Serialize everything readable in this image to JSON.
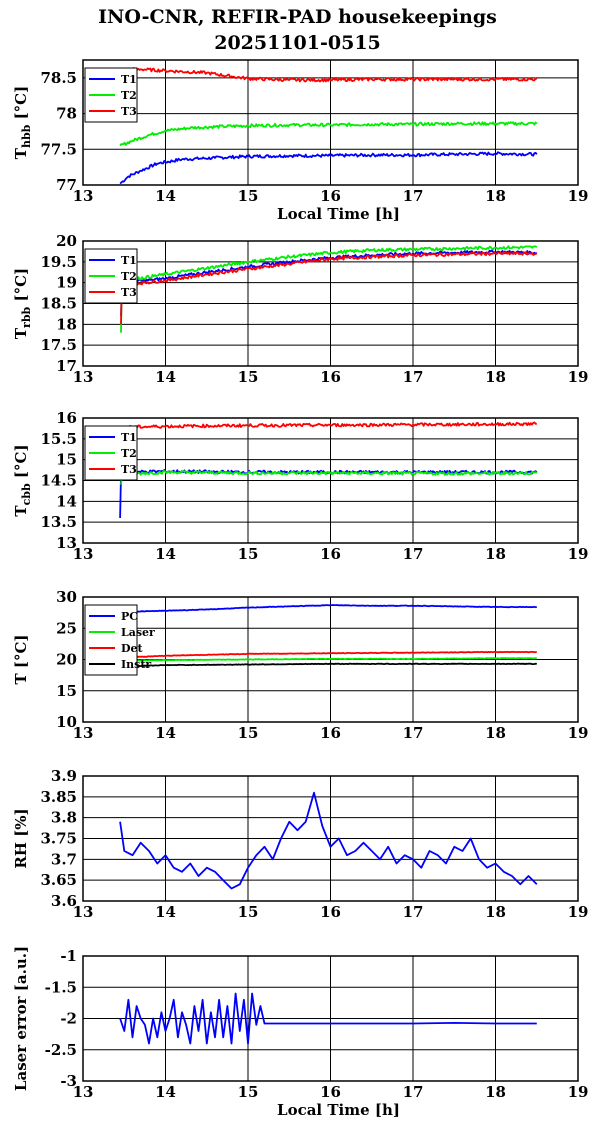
{
  "title": "INO-CNR, REFIR-PAD housekeepings",
  "subtitle": "20251101-0515",
  "colors": {
    "blue": "#0000ff",
    "green": "#00ee00",
    "red": "#ff0000",
    "black": "#000000"
  },
  "chart_data": [
    {
      "type": "line",
      "ylabel": "T_hbb [°C]",
      "xlabel": "Local Time [h]",
      "xlim": [
        13,
        19
      ],
      "ylim": [
        77,
        78.75
      ],
      "yticks": [
        77,
        77.5,
        78,
        78.5
      ],
      "ytick_labels": [
        "77",
        "77.5",
        "78",
        "78.5"
      ],
      "xticks": [
        13,
        14,
        15,
        16,
        17,
        18,
        19
      ],
      "legend": "top-left",
      "series": [
        {
          "name": "T1",
          "color": "#0000ff",
          "x": [
            13.45,
            13.55,
            13.7,
            13.9,
            14.2,
            14.6,
            15.0,
            15.5,
            16.0,
            16.5,
            17.0,
            17.5,
            18.0,
            18.5
          ],
          "y": [
            77.02,
            77.12,
            77.2,
            77.3,
            77.36,
            77.38,
            77.4,
            77.41,
            77.41,
            77.42,
            77.42,
            77.43,
            77.44,
            77.43
          ]
        },
        {
          "name": "T2",
          "color": "#00ee00",
          "x": [
            13.45,
            13.6,
            13.8,
            14.0,
            14.3,
            14.7,
            15.0,
            15.5,
            16.0,
            16.5,
            17.0,
            17.5,
            18.0,
            18.5
          ],
          "y": [
            77.55,
            77.62,
            77.7,
            77.76,
            77.8,
            77.82,
            77.83,
            77.84,
            77.84,
            77.85,
            77.85,
            77.86,
            77.86,
            77.86
          ]
        },
        {
          "name": "T3",
          "color": "#ff0000",
          "x": [
            13.45,
            13.7,
            14.0,
            14.5,
            14.8,
            15.0,
            15.5,
            16.0,
            16.5,
            17.0,
            17.5,
            18.0,
            18.5
          ],
          "y": [
            78.62,
            78.62,
            78.6,
            78.57,
            78.52,
            78.49,
            78.47,
            78.47,
            78.48,
            78.48,
            78.48,
            78.48,
            78.48
          ]
        }
      ]
    },
    {
      "type": "line",
      "ylabel": "T_rbb [°C]",
      "xlabel": "",
      "xlim": [
        13,
        19
      ],
      "ylim": [
        17,
        20
      ],
      "yticks": [
        17,
        17.5,
        18,
        18.5,
        19,
        19.5,
        20
      ],
      "ytick_labels": [
        "17",
        "17.5",
        "18",
        "18.5",
        "19",
        "19.5",
        "20"
      ],
      "xticks": [
        13,
        14,
        15,
        16,
        17,
        18,
        19
      ],
      "legend": "top-left",
      "series": [
        {
          "name": "T1",
          "color": "#0000ff",
          "x": [
            13.46,
            13.47,
            13.5,
            14.0,
            14.5,
            15.0,
            15.5,
            16.0,
            16.5,
            17.0,
            17.5,
            18.0,
            18.5
          ],
          "y": [
            18.2,
            18.95,
            19.0,
            19.1,
            19.25,
            19.38,
            19.5,
            19.6,
            19.66,
            19.7,
            19.72,
            19.74,
            19.72
          ]
        },
        {
          "name": "T2",
          "color": "#00ee00",
          "x": [
            13.46,
            13.47,
            13.5,
            14.0,
            14.5,
            15.0,
            15.5,
            16.0,
            16.5,
            17.0,
            17.5,
            18.0,
            18.5
          ],
          "y": [
            17.8,
            19.0,
            19.05,
            19.2,
            19.35,
            19.5,
            19.62,
            19.72,
            19.78,
            19.8,
            19.82,
            19.84,
            19.85
          ]
        },
        {
          "name": "T3",
          "color": "#ff0000",
          "x": [
            13.46,
            13.47,
            13.5,
            14.0,
            14.5,
            15.0,
            15.5,
            16.0,
            16.5,
            17.0,
            17.5,
            18.0,
            18.5
          ],
          "y": [
            18.0,
            18.9,
            18.95,
            19.05,
            19.2,
            19.33,
            19.45,
            19.57,
            19.62,
            19.66,
            19.68,
            19.7,
            19.7
          ]
        }
      ]
    },
    {
      "type": "line",
      "ylabel": "T_cbb [°C]",
      "xlabel": "",
      "xlim": [
        13,
        19
      ],
      "ylim": [
        13,
        16
      ],
      "yticks": [
        13,
        13.5,
        14,
        14.5,
        15,
        15.5,
        16
      ],
      "ytick_labels": [
        "13",
        "13.5",
        "14",
        "14.5",
        "15",
        "15.5",
        "16"
      ],
      "xticks": [
        13,
        14,
        15,
        16,
        17,
        18,
        19
      ],
      "legend": "top-left",
      "series": [
        {
          "name": "T1",
          "color": "#0000ff",
          "x": [
            13.45,
            13.46,
            13.5,
            14.0,
            15.0,
            16.0,
            17.0,
            18.0,
            18.5
          ],
          "y": [
            13.6,
            14.65,
            14.7,
            14.72,
            14.7,
            14.7,
            14.7,
            14.7,
            14.7
          ]
        },
        {
          "name": "T2",
          "color": "#00ee00",
          "x": [
            13.46,
            13.47,
            13.5,
            14.0,
            15.0,
            16.0,
            17.0,
            18.0,
            18.5
          ],
          "y": [
            14.4,
            14.6,
            14.65,
            14.7,
            14.68,
            14.68,
            14.67,
            14.67,
            14.68
          ]
        },
        {
          "name": "T3",
          "color": "#ff0000",
          "x": [
            13.45,
            13.5,
            14.0,
            15.0,
            16.0,
            17.0,
            18.0,
            18.5
          ],
          "y": [
            15.75,
            15.78,
            15.8,
            15.82,
            15.83,
            15.84,
            15.85,
            15.86
          ]
        }
      ]
    },
    {
      "type": "line",
      "ylabel": "T [°C]",
      "xlabel": "",
      "xlim": [
        13,
        19
      ],
      "ylim": [
        10,
        30
      ],
      "yticks": [
        10,
        15,
        20,
        25,
        30
      ],
      "ytick_labels": [
        "10",
        "15",
        "20",
        "25",
        "30"
      ],
      "xticks": [
        13,
        14,
        15,
        16,
        17,
        18,
        19
      ],
      "legend": "top-left",
      "series": [
        {
          "name": "PC",
          "color": "#0000ff",
          "x": [
            13.45,
            14.0,
            14.5,
            15.0,
            15.5,
            16.0,
            16.5,
            17.0,
            17.5,
            18.0,
            18.5
          ],
          "y": [
            27.6,
            27.8,
            28.0,
            28.3,
            28.5,
            28.7,
            28.6,
            28.6,
            28.5,
            28.4,
            28.4
          ]
        },
        {
          "name": "Laser",
          "color": "#00ee00",
          "x": [
            13.45,
            14.0,
            15.0,
            16.0,
            17.0,
            18.0,
            18.5
          ],
          "y": [
            19.8,
            19.9,
            20.0,
            20.1,
            20.1,
            20.2,
            20.2
          ]
        },
        {
          "name": "Det",
          "color": "#ff0000",
          "x": [
            13.45,
            14.0,
            15.0,
            16.0,
            17.0,
            18.0,
            18.5
          ],
          "y": [
            20.3,
            20.6,
            20.9,
            21.0,
            21.1,
            21.2,
            21.2
          ]
        },
        {
          "name": "Instr",
          "color": "#000000",
          "x": [
            13.45,
            14.0,
            15.0,
            16.0,
            17.0,
            18.0,
            18.5
          ],
          "y": [
            18.9,
            19.1,
            19.2,
            19.3,
            19.3,
            19.3,
            19.3
          ]
        }
      ]
    },
    {
      "type": "line",
      "ylabel": "RH [%]",
      "xlabel": "",
      "xlim": [
        13,
        19
      ],
      "ylim": [
        3.6,
        3.9
      ],
      "yticks": [
        3.6,
        3.65,
        3.7,
        3.75,
        3.8,
        3.85,
        3.9
      ],
      "ytick_labels": [
        "3.6",
        "3.65",
        "3.7",
        "3.75",
        "3.8",
        "3.85",
        "3.9"
      ],
      "xticks": [
        13,
        14,
        15,
        16,
        17,
        18,
        19
      ],
      "series": [
        {
          "name": "",
          "color": "#0000ff",
          "x": [
            13.45,
            13.5,
            13.6,
            13.7,
            13.8,
            13.9,
            14.0,
            14.1,
            14.2,
            14.3,
            14.4,
            14.5,
            14.6,
            14.7,
            14.8,
            14.9,
            15.0,
            15.1,
            15.2,
            15.3,
            15.4,
            15.5,
            15.6,
            15.7,
            15.8,
            15.9,
            16.0,
            16.1,
            16.2,
            16.3,
            16.4,
            16.5,
            16.6,
            16.7,
            16.8,
            16.9,
            17.0,
            17.1,
            17.2,
            17.3,
            17.4,
            17.5,
            17.6,
            17.7,
            17.8,
            17.9,
            18.0,
            18.1,
            18.2,
            18.3,
            18.4,
            18.5
          ],
          "y": [
            3.79,
            3.72,
            3.71,
            3.74,
            3.72,
            3.69,
            3.71,
            3.68,
            3.67,
            3.69,
            3.66,
            3.68,
            3.67,
            3.65,
            3.63,
            3.64,
            3.68,
            3.71,
            3.73,
            3.7,
            3.75,
            3.79,
            3.77,
            3.79,
            3.86,
            3.78,
            3.73,
            3.75,
            3.71,
            3.72,
            3.74,
            3.72,
            3.7,
            3.73,
            3.69,
            3.71,
            3.7,
            3.68,
            3.72,
            3.71,
            3.69,
            3.73,
            3.72,
            3.75,
            3.7,
            3.68,
            3.69,
            3.67,
            3.66,
            3.64,
            3.66,
            3.64
          ]
        }
      ]
    },
    {
      "type": "line",
      "ylabel": "Laser error [a.u.]",
      "xlabel": "Local Time [h]",
      "xlim": [
        13,
        19
      ],
      "ylim": [
        -3,
        -1
      ],
      "yticks": [
        -3,
        -2.5,
        -2,
        -1.5,
        -1
      ],
      "ytick_labels": [
        "-3",
        "-2.5",
        "-2",
        "-1.5",
        "-1"
      ],
      "xticks": [
        13,
        14,
        15,
        16,
        17,
        18,
        19
      ],
      "series": [
        {
          "name": "",
          "color": "#0000ff",
          "x": [
            13.45,
            13.5,
            13.55,
            13.6,
            13.65,
            13.7,
            13.75,
            13.8,
            13.85,
            13.9,
            13.95,
            14.0,
            14.05,
            14.1,
            14.15,
            14.2,
            14.25,
            14.3,
            14.35,
            14.4,
            14.45,
            14.5,
            14.55,
            14.6,
            14.65,
            14.7,
            14.75,
            14.8,
            14.85,
            14.9,
            14.95,
            15.0,
            15.05,
            15.1,
            15.15,
            15.2,
            15.5,
            16.0,
            16.5,
            17.0,
            17.5,
            18.0,
            18.5
          ],
          "y": [
            -2.0,
            -2.2,
            -1.7,
            -2.3,
            -1.8,
            -2.0,
            -2.1,
            -2.4,
            -2.0,
            -2.3,
            -1.9,
            -2.2,
            -2.0,
            -1.7,
            -2.3,
            -1.9,
            -2.1,
            -2.4,
            -1.8,
            -2.2,
            -1.7,
            -2.4,
            -1.9,
            -2.3,
            -1.7,
            -2.3,
            -1.8,
            -2.4,
            -1.6,
            -2.2,
            -1.7,
            -2.4,
            -1.6,
            -2.1,
            -1.8,
            -2.08,
            -2.08,
            -2.08,
            -2.08,
            -2.08,
            -2.07,
            -2.08,
            -2.08
          ]
        }
      ]
    }
  ]
}
